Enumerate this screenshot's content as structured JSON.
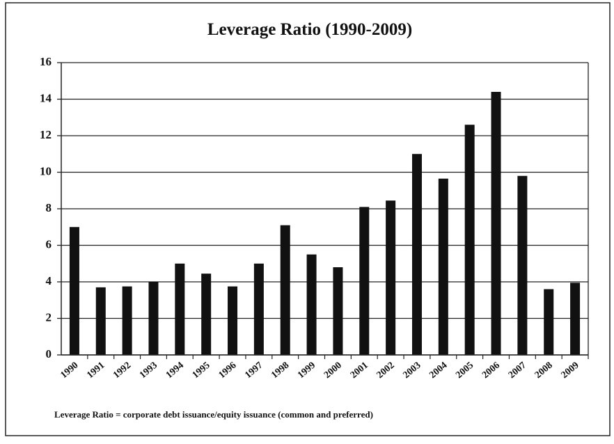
{
  "chart_data": {
    "type": "bar",
    "title": "Leverage Ratio (1990-2009)",
    "categories": [
      "1990",
      "1991",
      "1992",
      "1993",
      "1994",
      "1995",
      "1996",
      "1997",
      "1998",
      "1999",
      "2000",
      "2001",
      "2002",
      "2003",
      "2004",
      "2005",
      "2006",
      "2007",
      "2008",
      "2009"
    ],
    "values": [
      7.0,
      3.7,
      3.75,
      4.0,
      5.0,
      4.45,
      3.75,
      5.0,
      7.1,
      5.5,
      4.8,
      8.1,
      8.45,
      11.0,
      9.65,
      12.6,
      14.4,
      9.8,
      3.6,
      3.95
    ],
    "color": "#111111",
    "ylim": [
      0,
      16
    ],
    "yticks": [
      0,
      2,
      4,
      6,
      8,
      10,
      12,
      14,
      16
    ],
    "grid": true,
    "annotation": "Leverage Ratio = corporate debt issuance/equity issuance (common and preferred)"
  }
}
